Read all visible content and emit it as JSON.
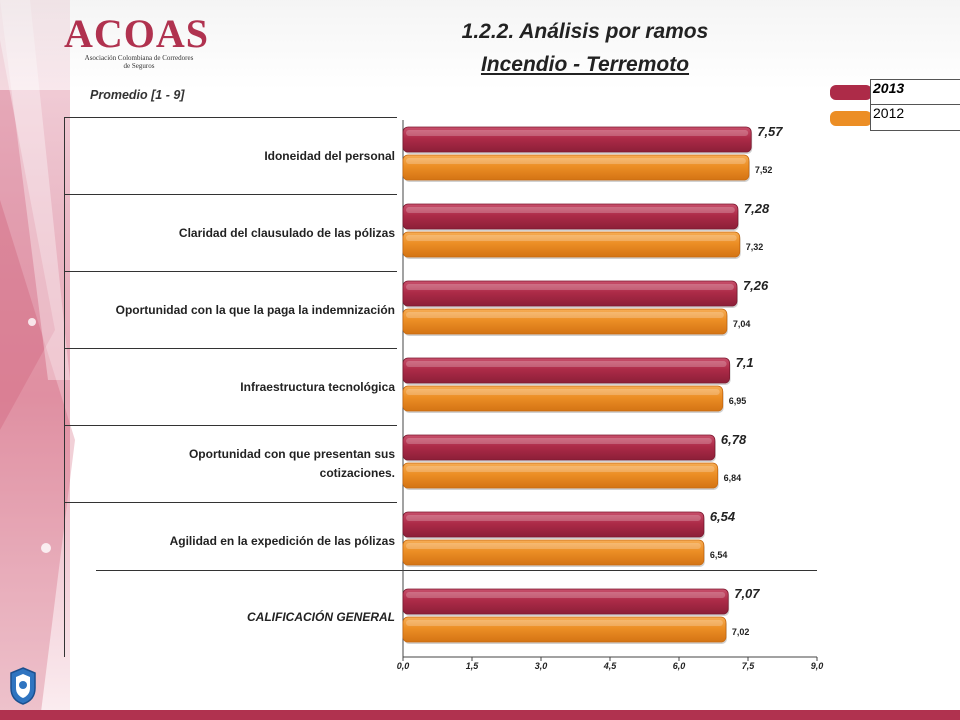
{
  "logo": {
    "name": "ACOAS",
    "subtitle": "Asociación Colombiana de Corredores de Seguros"
  },
  "title": {
    "line1": "1.2.2. Análisis por ramos",
    "line2": "Incendio - Terremoto"
  },
  "subtitle": "Promedio  [1 - 9]",
  "colors": {
    "s2013": "#ad2b48",
    "s2012": "#ec8e25",
    "accent": "#b0324f"
  },
  "chart_data": {
    "type": "bar",
    "orientation": "horizontal",
    "title": "1.2.2. Análisis por ramos — Incendio - Terremoto",
    "subtitle": "Promedio [1 - 9]",
    "categories": [
      "Idoneidad del personal",
      "Claridad del clausulado de las pólizas",
      "Oportunidad con la que la paga la indemnización",
      "Infraestructura tecnológica",
      "Oportunidad con que presentan sus cotizaciones.",
      "Agilidad en la expedición de las pólizas",
      "CALIFICACIÓN GENERAL"
    ],
    "series": [
      {
        "name": "2013",
        "values": [
          7.57,
          7.28,
          7.26,
          7.1,
          6.78,
          6.54,
          7.07
        ],
        "labels": [
          "7,57",
          "7,28",
          "7,26",
          "7,1",
          "6,78",
          "6,54",
          "7,07"
        ]
      },
      {
        "name": "2012",
        "values": [
          7.52,
          7.32,
          7.04,
          6.95,
          6.84,
          6.54,
          7.02
        ],
        "labels": [
          "7,52",
          "7,32",
          "7,04",
          "6,95",
          "6,84",
          "6,54",
          "7,02"
        ]
      }
    ],
    "xlim": [
      0,
      9
    ],
    "ticks": [
      0,
      1.5,
      3,
      4.5,
      6,
      7.5,
      9
    ],
    "tick_labels": [
      "0,0",
      "1,5",
      "3,0",
      "4,5",
      "6,0",
      "7,5",
      "9,0"
    ],
    "legend_position": "top-right",
    "grid": false
  }
}
